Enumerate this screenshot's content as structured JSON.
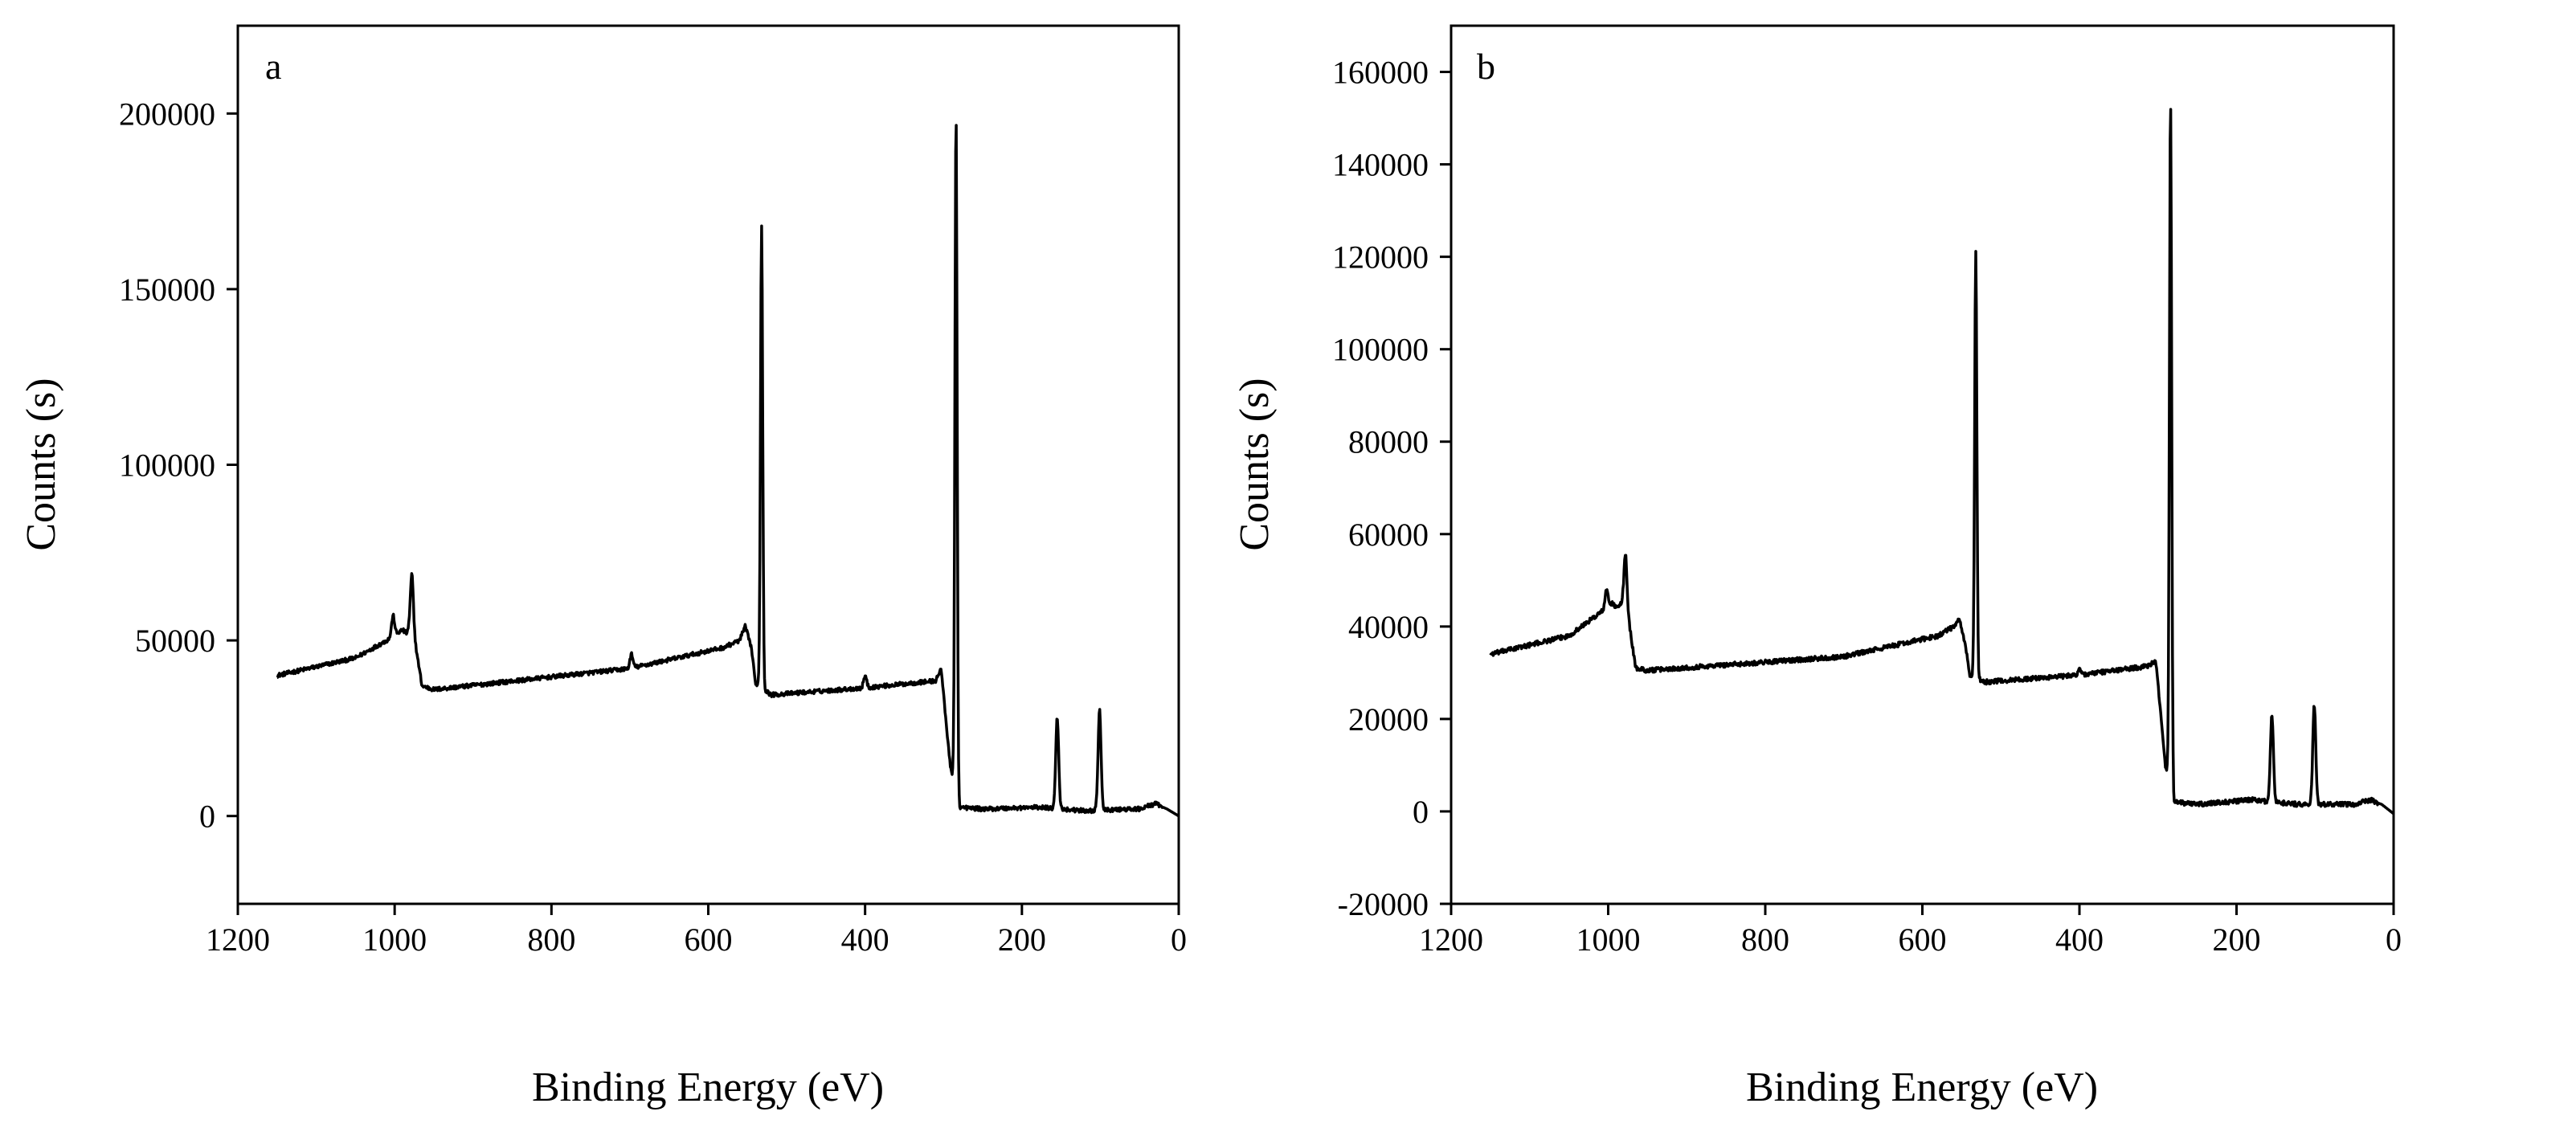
{
  "figure": {
    "panels": [
      "a",
      "b"
    ]
  },
  "chart_data": [
    {
      "type": "line",
      "panel_label": "a",
      "title": "",
      "xlabel": "Binding Energy (eV)",
      "ylabel": "Counts (s)",
      "xlim": [
        1200,
        0
      ],
      "ylim": [
        -25000,
        225000
      ],
      "x_reversed": true,
      "xticks": [
        1200,
        1000,
        800,
        600,
        400,
        200,
        0
      ],
      "xtick_labels": [
        "1200",
        "1000",
        "800",
        "600",
        "400",
        "200",
        "0"
      ],
      "yticks": [
        0,
        50000,
        100000,
        150000,
        200000
      ],
      "ytick_labels": [
        "0",
        "50000",
        "100000",
        "150000",
        "200000"
      ],
      "grid": false,
      "legend": false,
      "line_color": "#000000",
      "baseline_points": [
        [
          1150,
          40000
        ],
        [
          1050,
          45000
        ],
        [
          1010,
          50000
        ],
        [
          990,
          53000
        ],
        [
          985,
          52000
        ],
        [
          978,
          55000
        ],
        [
          965,
          37000
        ],
        [
          950,
          36000
        ],
        [
          700,
          42000
        ],
        [
          580,
          48000
        ],
        [
          560,
          50000
        ],
        [
          553,
          54000
        ],
        [
          545,
          48000
        ],
        [
          540,
          38000
        ],
        [
          520,
          34500
        ],
        [
          400,
          36500
        ],
        [
          310,
          38500
        ],
        [
          303,
          42000
        ],
        [
          298,
          30000
        ],
        [
          293,
          18000
        ],
        [
          290,
          12000
        ],
        [
          285,
          10000
        ],
        [
          280,
          2500
        ],
        [
          250,
          2000
        ],
        [
          180,
          2500
        ],
        [
          120,
          1500
        ],
        [
          50,
          2000
        ],
        [
          30,
          3500
        ],
        [
          15,
          2000
        ],
        [
          0,
          0
        ]
      ],
      "peaks": [
        {
          "x": 1002,
          "y": 57000
        },
        {
          "x": 978,
          "y": 69000
        },
        {
          "x": 698,
          "y": 46000
        },
        {
          "x": 532,
          "y": 168000
        },
        {
          "x": 400,
          "y": 40000
        },
        {
          "x": 284,
          "y": 200000
        },
        {
          "x": 155,
          "y": 28000
        },
        {
          "x": 101,
          "y": 30000
        }
      ],
      "noise_amplitude": 600
    },
    {
      "type": "line",
      "panel_label": "b",
      "title": "",
      "xlabel": "Binding Energy (eV)",
      "ylabel": "Counts (s)",
      "xlim": [
        1200,
        0
      ],
      "ylim": [
        -20000,
        170000
      ],
      "x_reversed": true,
      "xticks": [
        1200,
        1000,
        800,
        600,
        400,
        200,
        0
      ],
      "xtick_labels": [
        "1200",
        "1000",
        "800",
        "600",
        "400",
        "200",
        "0"
      ],
      "yticks": [
        -20000,
        0,
        20000,
        40000,
        60000,
        80000,
        100000,
        120000,
        140000,
        160000
      ],
      "ytick_labels": [
        "-20000",
        "0",
        "20000",
        "40000",
        "60000",
        "80000",
        "100000",
        "120000",
        "140000",
        "160000"
      ],
      "grid": false,
      "legend": false,
      "line_color": "#000000",
      "baseline_points": [
        [
          1150,
          34000
        ],
        [
          1050,
          38000
        ],
        [
          1010,
          43000
        ],
        [
          995,
          45000
        ],
        [
          988,
          44000
        ],
        [
          978,
          46000
        ],
        [
          965,
          31000
        ],
        [
          950,
          30500
        ],
        [
          700,
          33500
        ],
        [
          580,
          38000
        ],
        [
          560,
          40000
        ],
        [
          553,
          41500
        ],
        [
          545,
          36000
        ],
        [
          540,
          29500
        ],
        [
          520,
          28000
        ],
        [
          400,
          29500
        ],
        [
          310,
          31500
        ],
        [
          303,
          33000
        ],
        [
          298,
          24000
        ],
        [
          293,
          14000
        ],
        [
          290,
          9000
        ],
        [
          285,
          7000
        ],
        [
          280,
          2000
        ],
        [
          250,
          1500
        ],
        [
          180,
          2500
        ],
        [
          120,
          1500
        ],
        [
          50,
          1500
        ],
        [
          30,
          2500
        ],
        [
          15,
          1500
        ],
        [
          0,
          -500
        ]
      ],
      "peaks": [
        {
          "x": 1002,
          "y": 48000
        },
        {
          "x": 978,
          "y": 56000
        },
        {
          "x": 532,
          "y": 121000
        },
        {
          "x": 400,
          "y": 31000
        },
        {
          "x": 284,
          "y": 154000
        },
        {
          "x": 155,
          "y": 21000
        },
        {
          "x": 101,
          "y": 23000
        }
      ],
      "noise_amplitude": 500
    }
  ]
}
